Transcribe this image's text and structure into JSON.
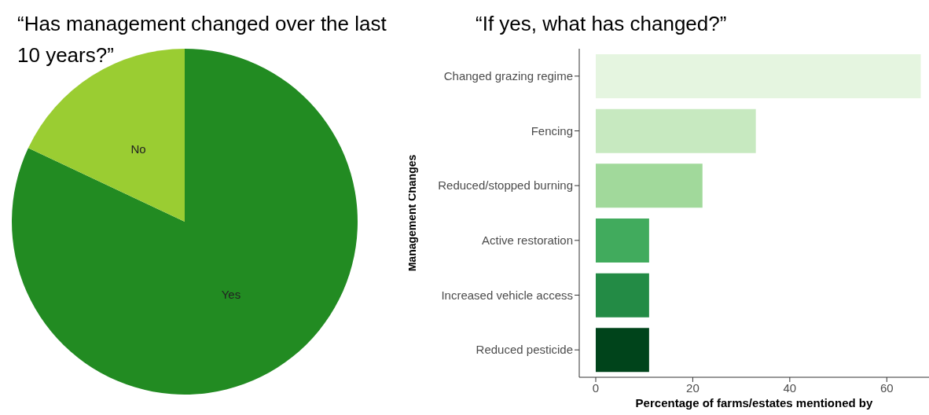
{
  "chart_data": [
    {
      "type": "pie",
      "title": "“Has management changed over the last 10 years?”",
      "categories": [
        "Yes",
        "No"
      ],
      "values": [
        82,
        18
      ],
      "colors": [
        "#228b22",
        "#9acd32"
      ]
    },
    {
      "type": "bar",
      "orientation": "horizontal",
      "title": "“If yes, what has changed?”",
      "xlabel": "Percentage of farms/estates mentioned by",
      "ylabel": "Management Changes",
      "categories": [
        "Changed grazing regime",
        "Fencing",
        "Reduced/stopped burning",
        "Active restoration",
        "Increased vehicle access",
        "Reduced pesticide"
      ],
      "values": [
        67,
        33,
        22,
        11,
        11,
        11
      ],
      "colors": [
        "#e5f5e0",
        "#c7e9c0",
        "#a1d99b",
        "#41ab5d",
        "#238b45",
        "#00441b"
      ],
      "xlim": [
        -3.4,
        68.7
      ],
      "xticks": [
        0,
        20,
        40,
        60
      ],
      "grid": false,
      "legend": false
    }
  ]
}
